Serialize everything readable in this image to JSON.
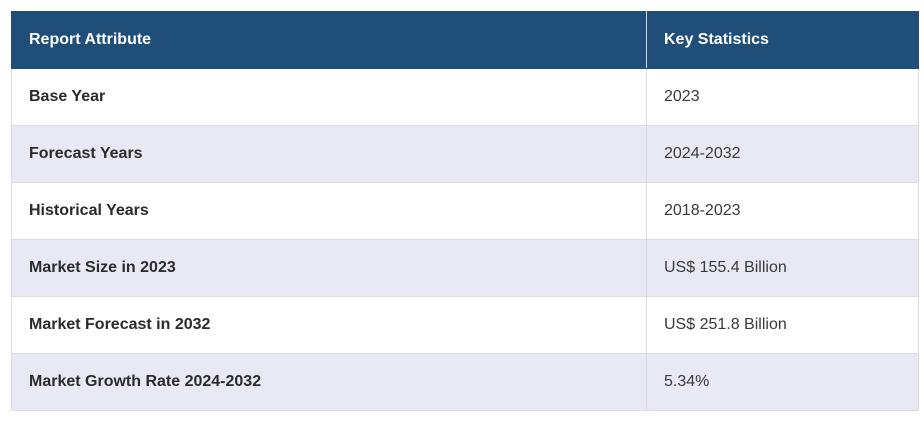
{
  "table": {
    "headers": [
      "Report Attribute",
      "Key Statistics"
    ],
    "rows": [
      [
        "Base Year",
        "2023"
      ],
      [
        "Forecast Years",
        "2024-2032"
      ],
      [
        "Historical Years",
        "2018-2023"
      ],
      [
        "Market Size in 2023",
        "US$ 155.4 Billion"
      ],
      [
        "Market Forecast in 2032",
        "US$ 251.8 Billion"
      ],
      [
        "Market Growth Rate 2024-2032",
        "5.34%"
      ]
    ]
  },
  "colors": {
    "header_bg": "#1f4e79",
    "header_text": "#ffffff",
    "row_alt_bg": "#e8e9f4",
    "row_bg": "#ffffff",
    "border": "#dcdcdc"
  }
}
